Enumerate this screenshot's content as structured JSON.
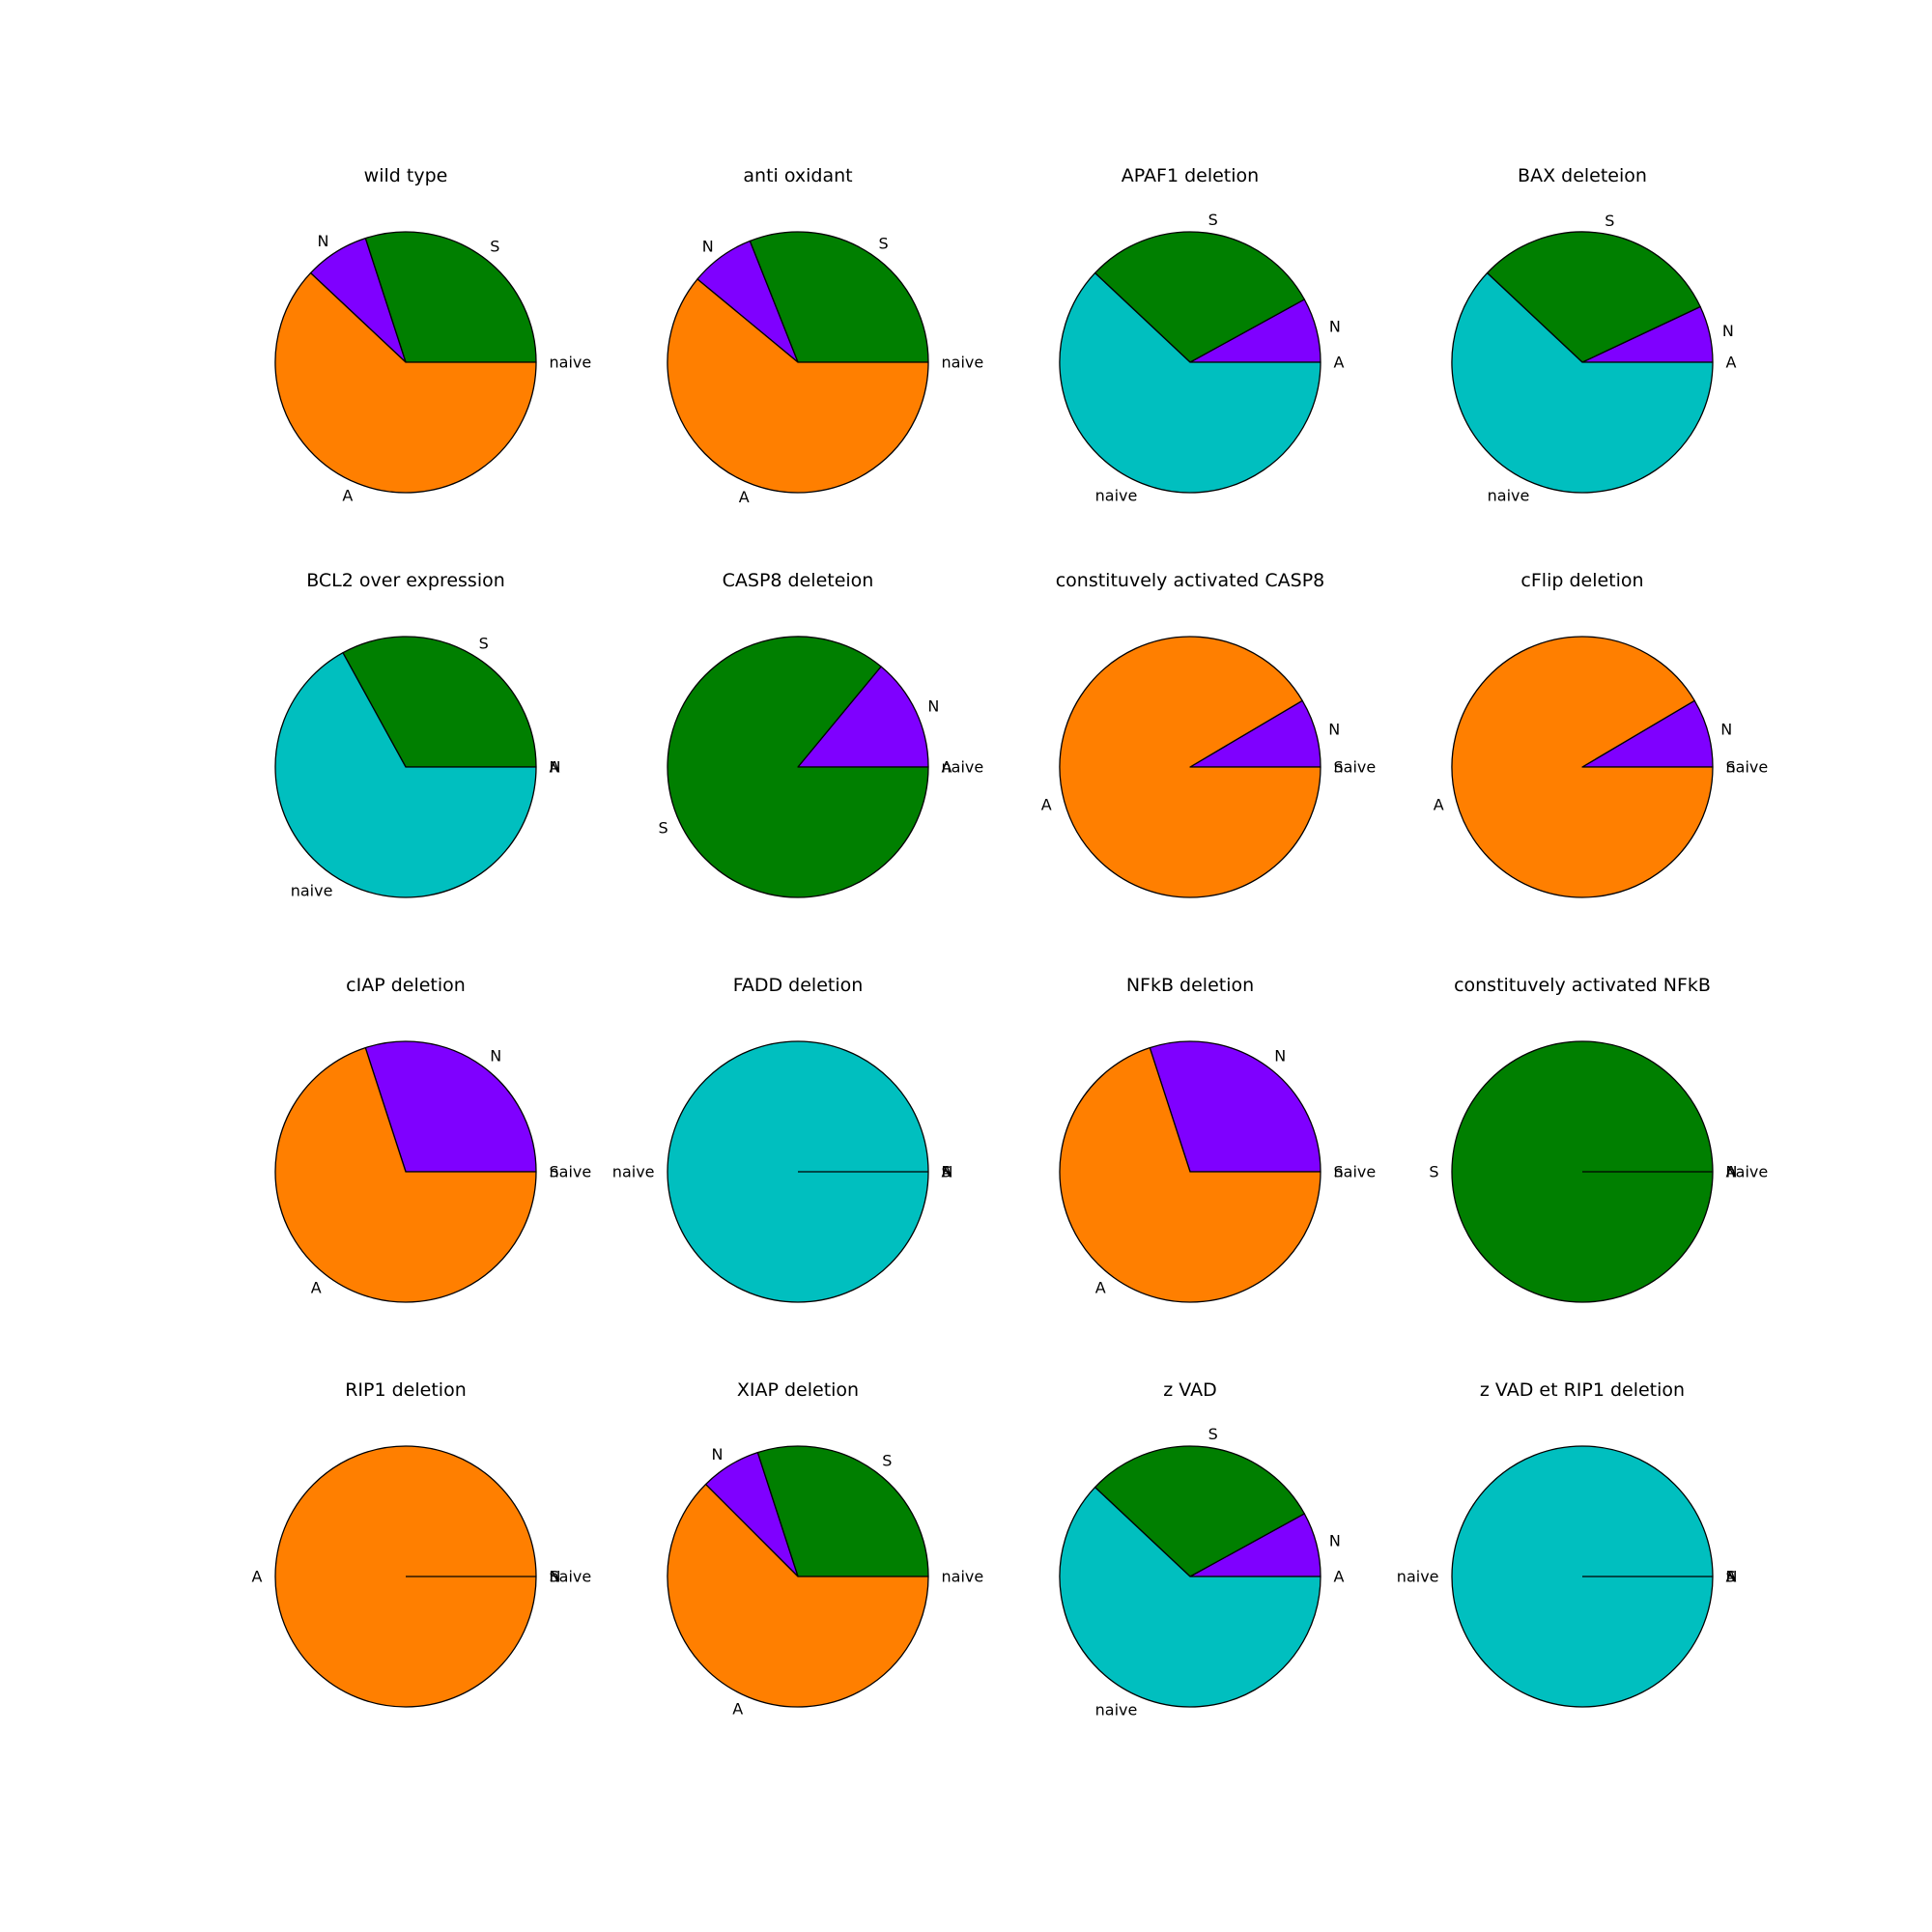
{
  "colors": {
    "A": "#ff7f00",
    "N": "#7f00ff",
    "S": "#007f00",
    "naive": "#00bfbf"
  },
  "chart_data": [
    {
      "type": "pie",
      "title": "wild type",
      "labels": [
        "naive",
        "S",
        "N",
        "A"
      ],
      "values": [
        0,
        0.3,
        0.08,
        0.62
      ]
    },
    {
      "type": "pie",
      "title": "anti oxidant",
      "labels": [
        "naive",
        "S",
        "N",
        "A"
      ],
      "values": [
        0,
        0.31,
        0.08,
        0.61
      ]
    },
    {
      "type": "pie",
      "title": "APAF1 deletion",
      "labels": [
        "A",
        "N",
        "S",
        "naive"
      ],
      "values": [
        0,
        0.08,
        0.3,
        0.62
      ]
    },
    {
      "type": "pie",
      "title": "BAX deleteion",
      "labels": [
        "A",
        "N",
        "S",
        "naive"
      ],
      "values": [
        0,
        0.07,
        0.31,
        0.62
      ]
    },
    {
      "type": "pie",
      "title": "BCL2 over expression",
      "labels": [
        "A",
        "N",
        "S",
        "naive"
      ],
      "values": [
        0,
        0,
        0.33,
        0.67
      ]
    },
    {
      "type": "pie",
      "title": "CASP8 deleteion",
      "labels": [
        "naive",
        "A",
        "N",
        "S"
      ],
      "values": [
        0,
        0,
        0.14,
        0.86
      ]
    },
    {
      "type": "pie",
      "title": "constituvely activated CASP8",
      "labels": [
        "naive",
        "S",
        "N",
        "A"
      ],
      "values": [
        0,
        0,
        0.085,
        0.915
      ]
    },
    {
      "type": "pie",
      "title": "cFlip deletion",
      "labels": [
        "naive",
        "S",
        "N",
        "A"
      ],
      "values": [
        0,
        0,
        0.085,
        0.915
      ]
    },
    {
      "type": "pie",
      "title": "cIAP deletion",
      "labels": [
        "naive",
        "S",
        "N",
        "A"
      ],
      "values": [
        0,
        0,
        0.3,
        0.7
      ]
    },
    {
      "type": "pie",
      "title": "FADD deletion",
      "labels": [
        "A",
        "N",
        "S",
        "naive"
      ],
      "values": [
        0,
        0,
        0,
        1
      ]
    },
    {
      "type": "pie",
      "title": "NFkB deletion",
      "labels": [
        "naive",
        "S",
        "N",
        "A"
      ],
      "values": [
        0,
        0,
        0.3,
        0.7
      ]
    },
    {
      "type": "pie",
      "title": "constituvely activated NFkB",
      "labels": [
        "naive",
        "A",
        "N",
        "S"
      ],
      "values": [
        0,
        0,
        0,
        1
      ]
    },
    {
      "type": "pie",
      "title": "RIP1 deletion",
      "labels": [
        "naive",
        "S",
        "N",
        "A"
      ],
      "values": [
        0,
        0,
        0,
        1
      ]
    },
    {
      "type": "pie",
      "title": "XIAP deletion",
      "labels": [
        "naive",
        "S",
        "N",
        "A"
      ],
      "values": [
        0,
        0.3,
        0.075,
        0.625
      ]
    },
    {
      "type": "pie",
      "title": "z VAD",
      "labels": [
        "A",
        "N",
        "S",
        "naive"
      ],
      "values": [
        0,
        0.08,
        0.3,
        0.62
      ]
    },
    {
      "type": "pie",
      "title": "z VAD et RIP1 deletion",
      "labels": [
        "A",
        "N",
        "S",
        "naive"
      ],
      "values": [
        0,
        0,
        0,
        1
      ]
    }
  ]
}
